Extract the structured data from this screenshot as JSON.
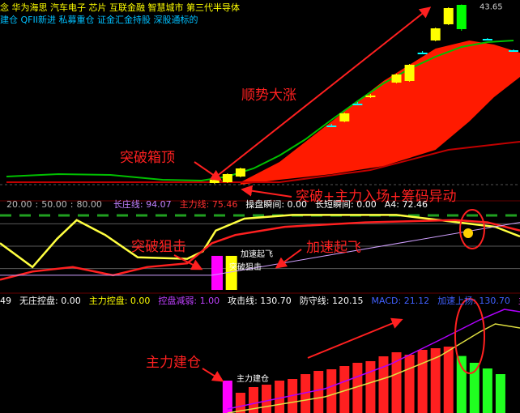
{
  "chart_data": [
    {
      "type": "candlestick",
      "tags": [
        "念 华为海思 汽车电子 芯片 互联金融 智慧城市 第三代半导体",
        "建仓 QFII新进 私募重仓 证金汇金持股 深股通标的"
      ],
      "tag_colors": [
        "#ffff00",
        "#00c0ff"
      ],
      "xlim": [
        -0.5,
        39.5
      ],
      "ylim": [
        20.7,
        44.2
      ],
      "x": [
        16,
        17,
        18,
        25,
        26,
        27,
        28,
        30,
        31,
        32,
        33,
        34,
        35,
        37,
        39
      ],
      "open": [
        21.6,
        21.7,
        22.4,
        28.6,
        29.2,
        31.3,
        32.3,
        34.0,
        34.2,
        37.6,
        39.2,
        41.2,
        43.6,
        39.3,
        37.9
      ],
      "high": [
        22.2,
        22.8,
        23.5,
        28.9,
        30.3,
        31.6,
        32.6,
        35.1,
        36.3,
        37.9,
        40.8,
        43.3,
        43.65,
        39.5,
        38.1
      ],
      "low": [
        21.5,
        21.6,
        22.3,
        28.5,
        29.1,
        31.2,
        32.1,
        33.9,
        34.1,
        37.5,
        39.1,
        41.1,
        40.4,
        39.2,
        37.8
      ],
      "close": [
        22.0,
        22.7,
        23.4,
        28.7,
        30.2,
        31.4,
        32.4,
        35.0,
        36.2,
        37.7,
        40.7,
        43.2,
        40.6,
        39.4,
        38.0
      ],
      "colors": [
        "#ffff00",
        "#ffff00",
        "#ffff00",
        "#00ffff",
        "#ffff00",
        "#00ffff",
        "#ffff00",
        "#ffff00",
        "#ffff00",
        "#00ffff",
        "#ffff00",
        "#ffff00",
        "#00ff00",
        "#00ffff",
        "#00ffff"
      ],
      "price_label": {
        "value": 43.65,
        "label": "43.65"
      },
      "band": {
        "color": "#ff1a00",
        "x": [
          18,
          21,
          25,
          29,
          33,
          35.6,
          37.5,
          39.5
        ],
        "high": [
          21.7,
          24.2,
          29.2,
          34.2,
          38.2,
          39.2,
          38.7,
          37.7
        ],
        "low": [
          21.4,
          22.0,
          22.7,
          23.7,
          25.7,
          29.2,
          32.2,
          34.7
        ]
      },
      "series": [
        {
          "color": "#00c000",
          "x": [
            0,
            4,
            8,
            12,
            15,
            17,
            19,
            21,
            23,
            25,
            27,
            29,
            31,
            33,
            35,
            37,
            39
          ],
          "values": [
            22.4,
            22.7,
            22.6,
            22.0,
            21.9,
            22.4,
            23.4,
            25.0,
            27.0,
            29.4,
            31.7,
            33.9,
            35.7,
            37.2,
            38.4,
            39.0,
            39.2
          ]
        },
        {
          "color": "#c00000",
          "x": [
            0,
            21,
            28,
            34,
            39.5
          ],
          "values": [
            21.7,
            21.7,
            23.2,
            25.7,
            26.7
          ]
        }
      ]
    },
    {
      "type": "line",
      "xlim": [
        -0.5,
        39.5
      ],
      "ylim": [
        -8.7,
        100
      ],
      "levels": [
        {
          "value": 20,
          "label": "20.00"
        },
        {
          "value": 50,
          "label": "50.00"
        },
        {
          "value": 80,
          "label": "80.00"
        }
      ],
      "level_separator": ":",
      "level_color": "#bbbbbb",
      "legend": [
        {
          "text": "长庄线: 94.07",
          "color": "#c080ff"
        },
        {
          "text": "主力线: 75.46",
          "color": "#ff3030"
        },
        {
          "text": "操盘瞬间: 0.00",
          "color": "#ffffff"
        },
        {
          "text": "长短瞬间: 0.00",
          "color": "#ffffff"
        },
        {
          "text": "A4: 72.46",
          "color": "#ffffff"
        }
      ],
      "series": [
        {
          "color": "#ffff40",
          "x": [
            -0.5,
            2,
            3.9,
            5.4,
            7.6,
            10.1,
            13.9,
            15.1,
            16.1,
            18.3,
            22,
            30,
            37.6,
            39.5
          ],
          "values": [
            54,
            22,
            60,
            85,
            65,
            35,
            33,
            43,
            71,
            87,
            92,
            92,
            76,
            63
          ]
        },
        {
          "color": "#ff2020",
          "x": [
            -0.5,
            2,
            5.1,
            8.2,
            10.8,
            13.9,
            15.8,
            17.6,
            21.4,
            27.6,
            34.5,
            37,
            39.5
          ],
          "values": [
            5,
            16,
            22,
            11,
            22,
            27,
            54,
            65,
            76,
            82,
            85,
            82,
            71
          ]
        },
        {
          "color": "#d0a0ff",
          "x": [
            -0.5,
            15.8,
            39.5
          ],
          "values": [
            11,
            11,
            82
          ]
        }
      ],
      "bars": {
        "x": [
          16.2,
          17.3
        ],
        "values": [
          37,
          37
        ],
        "colors": [
          "#ff00ff",
          "#ffff00"
        ]
      }
    },
    {
      "type": "bar",
      "xlim": [
        -0.5,
        39.5
      ],
      "ylim": [
        0,
        39
      ],
      "legend": [
        {
          "text": "49",
          "color": "#ffffff"
        },
        {
          "text": "无庄控盘: 0.00",
          "color": "#ffffff"
        },
        {
          "text": "主力控盘: 0.00",
          "color": "#ffff00"
        },
        {
          "text": "控盘减弱: 1.00",
          "color": "#c040ff"
        },
        {
          "text": "攻击线: 130.70",
          "color": "#ffffff"
        },
        {
          "text": "防守线: 120.15",
          "color": "#ffffff"
        },
        {
          "text": "MACD: 21.12",
          "color": "#4060ff"
        },
        {
          "text": "加速上扬: 130.70",
          "color": "#4060ff"
        },
        {
          "text": "主力建仓",
          "color": "#ff40ff"
        }
      ],
      "x": [
        17,
        18,
        19,
        20,
        21,
        22,
        23,
        24,
        25,
        26,
        27,
        28,
        29,
        30,
        31,
        32,
        33,
        34,
        35,
        36,
        37,
        38
      ],
      "values": [
        12,
        7.5,
        9.6,
        10.5,
        12,
        12.6,
        14.4,
        15.6,
        16.2,
        17.4,
        18.6,
        19.2,
        21,
        22.5,
        21.6,
        23.4,
        24,
        24.6,
        21.12,
        18.6,
        16.5,
        14.4
      ],
      "colors": [
        "#ff00ff",
        "#ff2020",
        "#ff2020",
        "#ff2020",
        "#ff2020",
        "#ff2020",
        "#ff2020",
        "#ff2020",
        "#ff2020",
        "#ff2020",
        "#ff2020",
        "#ff2020",
        "#ff2020",
        "#ff2020",
        "#ff2020",
        "#ff2020",
        "#ff2020",
        "#ff2020",
        "#20ff20",
        "#20ff20",
        "#20ff20",
        "#20ff20"
      ],
      "series": [
        {
          "color": "#b000ff",
          "x": [
            17,
            24.5,
            29.5,
            33.3,
            36.4,
            38.3,
            39.5
          ],
          "values": [
            1.5,
            9,
            18,
            27,
            34.5,
            38.4,
            37.5
          ]
        },
        {
          "color": "#e0e040",
          "x": [
            17,
            24.5,
            29.5,
            33.3,
            36.4,
            37.6,
            39.5
          ],
          "values": [
            0,
            6,
            13.5,
            21,
            30,
            33,
            31.5
          ]
        }
      ]
    }
  ],
  "annotations": [
    {
      "text": "顺势大涨",
      "color": "#ff2020"
    },
    {
      "text": "突破箱顶",
      "color": "#ff2020"
    },
    {
      "text": "突破+主力入场+筹码异动",
      "color": "#ff2020"
    },
    {
      "text": "突破狙击",
      "color": "#ff2020"
    },
    {
      "text": "加速起飞",
      "color": "#ff2020"
    },
    {
      "text": "主力建仓",
      "color": "#ff2020"
    },
    {
      "text": "加速起飞",
      "color": "#ffffff"
    },
    {
      "text": "突破狙击",
      "color": "#ffffff"
    },
    {
      "text": "主力建仓",
      "color": "#ffffff"
    }
  ]
}
